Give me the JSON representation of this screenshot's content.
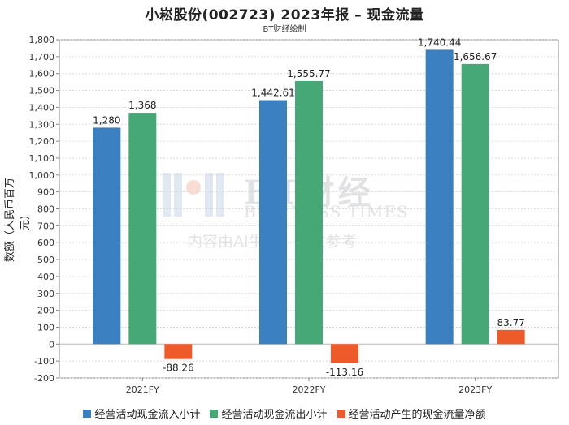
{
  "title": "小崧股份(002723) 2023年报 – 现金流量",
  "subtitle": "BT财经绘制",
  "watermark": {
    "title": "BT财经",
    "subtitle": "BUSINESS TIMES",
    "note": "内容由AI生成，仅供参考"
  },
  "colors": {
    "inflow": "#3a7fc0",
    "outflow": "#46a877",
    "net": "#ef5a2a",
    "grid": "#d0d0d0",
    "axis": "#888888"
  },
  "chart_data": {
    "type": "bar",
    "categories": [
      "2021FY",
      "2022FY",
      "2023FY"
    ],
    "series": [
      {
        "name": "经营活动现金流入小计",
        "values": [
          1280,
          1442.61,
          1740.44
        ],
        "labels": [
          "1,280",
          "1,442.61",
          "1,740.44"
        ],
        "color": "#3a7fc0"
      },
      {
        "name": "经营活动现金流出小计",
        "values": [
          1368,
          1555.77,
          1656.67
        ],
        "labels": [
          "1,368",
          "1,555.77",
          "1,656.67"
        ],
        "color": "#46a877"
      },
      {
        "name": "经营活动产生的现金流量净额",
        "values": [
          -88.26,
          -113.16,
          83.77
        ],
        "labels": [
          "-88.26",
          "-113.16",
          "83.77"
        ],
        "color": "#ef5a2a"
      }
    ],
    "ylabel": "数额（人民币百万元）",
    "xlabel": "",
    "ylim": [
      -200,
      1800
    ],
    "yticks": [
      -200,
      -100,
      0,
      100,
      200,
      300,
      400,
      500,
      600,
      700,
      800,
      900,
      1000,
      1100,
      1200,
      1300,
      1400,
      1500,
      1600,
      1700,
      1800
    ],
    "ytick_labels": [
      "-200",
      "-100",
      "0",
      "100",
      "200",
      "300",
      "400",
      "500",
      "600",
      "700",
      "800",
      "900",
      "1,000",
      "1,100",
      "1,200",
      "1,300",
      "1,400",
      "1,500",
      "1,600",
      "1,700",
      "1,800"
    ],
    "grid": true,
    "legend_position": "bottom"
  }
}
